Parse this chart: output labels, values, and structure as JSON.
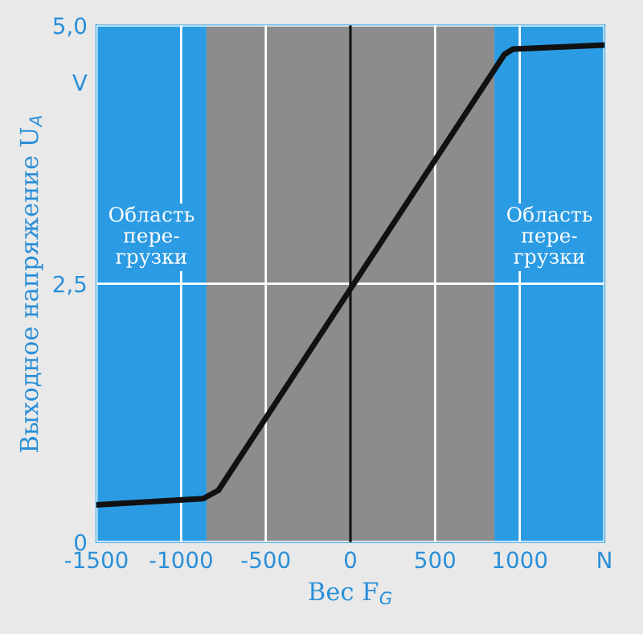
{
  "chart_data": {
    "type": "line",
    "xlabel": "Вес F$_{G}$",
    "ylabel": "Выходное напряжение U$_{A}$",
    "x": [
      -1500,
      -870,
      -780,
      0,
      910,
      960,
      1500
    ],
    "series": [
      {
        "color": "#111111",
        "values": [
          0.36,
          0.42,
          0.5,
          2.45,
          4.72,
          4.77,
          4.81
        ]
      }
    ],
    "xlim": [
      -1500,
      1500
    ],
    "ylim": [
      0,
      5
    ],
    "xticks": [
      -1500,
      -1000,
      -500,
      0,
      500,
      1000,
      {
        "value": 1500,
        "label": "N"
      }
    ],
    "yticks": [
      0,
      {
        "value": 2.5,
        "label": "2,5"
      },
      {
        "value": 5,
        "label": "5,0"
      },
      {
        "value": 4.45,
        "label": "V"
      }
    ],
    "grid": true,
    "legend": false,
    "marker": "none",
    "line_style": "solid",
    "bands": [
      {
        "axis": "x",
        "from": -1500,
        "to": -850,
        "label": "Область\nпере-\nгрузки",
        "color": "#2b9be3"
      },
      {
        "axis": "x",
        "from": -850,
        "to": 850,
        "color": "#8c8c8c"
      },
      {
        "axis": "x",
        "from": 850,
        "to": 1500,
        "label": "Область\nпере-\nгрузки",
        "color": "#2b9be3"
      }
    ],
    "ref_lines": [
      {
        "axis": "x",
        "value": 0,
        "color": "#111111"
      }
    ]
  }
}
